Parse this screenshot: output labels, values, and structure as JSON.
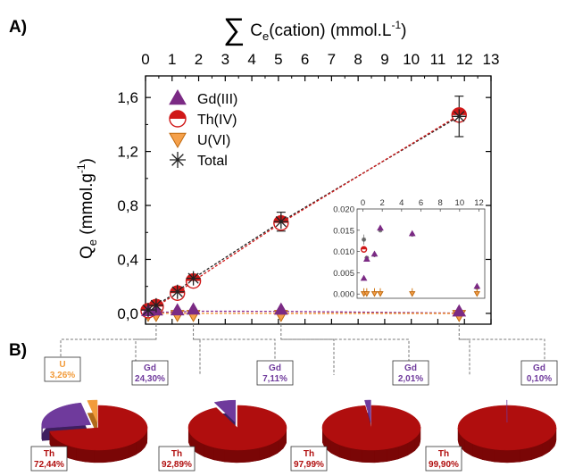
{
  "panels": {
    "a": "A)",
    "b": "B)"
  },
  "chart_data": [
    {
      "type": "scatter",
      "top_axis_label_prefix": "∑",
      "top_axis_label": "C",
      "top_axis_label_sub": "e",
      "top_axis_label_rest": "(cation)  (mmol.L",
      "top_axis_label_sup": "-1",
      "top_axis_label_end": ")",
      "ylabel": "Q",
      "ylabel_sub": "e",
      "ylabel_rest": " (mmol.g",
      "ylabel_sup": "-1",
      "ylabel_end": ")",
      "xlim": [
        0,
        13
      ],
      "ylim": [
        -0.08,
        1.76
      ],
      "x_ticks": [
        "0",
        "1",
        "2",
        "3",
        "4",
        "5",
        "6",
        "7",
        "8",
        "9",
        "10",
        "11",
        "12",
        "13"
      ],
      "y_ticks": [
        {
          "value": 0.0,
          "label": "0,0"
        },
        {
          "value": 0.4,
          "label": "0,4"
        },
        {
          "value": 0.8,
          "label": "0,8"
        },
        {
          "value": 1.2,
          "label": "1,2"
        },
        {
          "value": 1.6,
          "label": "1,6"
        }
      ],
      "legend_position": "top-left",
      "series": [
        {
          "name": "Gd(III)",
          "marker": "triangle-up",
          "color": "#7b2a84",
          "x": [
            0.1,
            0.4,
            1.2,
            1.8,
            5.1,
            11.8
          ],
          "y": [
            0.004,
            0.009,
            0.01,
            0.016,
            0.015,
            0.002
          ]
        },
        {
          "name": "Th(IV)",
          "marker": "half-circle",
          "color": "#e8211f",
          "x": [
            0.1,
            0.4,
            1.2,
            1.8,
            5.1,
            11.8
          ],
          "y": [
            0.02,
            0.05,
            0.15,
            0.24,
            0.67,
            1.47
          ]
        },
        {
          "name": "U(VI)",
          "marker": "triangle-down",
          "color": "#f28c28",
          "x": [
            0.1,
            0.4,
            1.2,
            1.8,
            5.1,
            11.8
          ],
          "y": [
            0.001,
            0.0005,
            0.0003,
            0.0002,
            0.0,
            0.0
          ]
        },
        {
          "name": "Total",
          "marker": "asterisk",
          "color": "#222222",
          "x": [
            0.1,
            0.4,
            1.2,
            1.8,
            5.1,
            11.8
          ],
          "y": [
            0.025,
            0.06,
            0.16,
            0.26,
            0.68,
            1.46
          ],
          "err": [
            0.02,
            0.03,
            0.03,
            0.03,
            0.07,
            0.15
          ]
        }
      ]
    },
    {
      "type": "scatter",
      "role": "inset",
      "xlim": [
        -0.6,
        12.6
      ],
      "ylim": [
        -0.001,
        0.02
      ],
      "x_ticks": [
        "0",
        "2",
        "4",
        "6",
        "8",
        "10",
        "12"
      ],
      "y_ticks": [
        "0.000",
        "0.005",
        "0.010",
        "0.015",
        "0.020"
      ],
      "y_tick_values": [
        0.0,
        0.005,
        0.01,
        0.015,
        0.02
      ],
      "series": [
        {
          "name": "Gd(III)",
          "marker": "triangle-up",
          "color": "#7b2a84",
          "x": [
            0.1,
            0.4,
            1.2,
            1.8,
            5.1,
            11.8
          ],
          "y": [
            0.0037,
            0.0082,
            0.0094,
            0.0155,
            0.0142,
            0.0018
          ]
        },
        {
          "name": "Th(IV)",
          "marker": "half-circle",
          "color": "#e8211f",
          "x": [
            0.1
          ],
          "y": [
            0.0105
          ]
        },
        {
          "name": "U(VI)",
          "marker": "triangle-down",
          "color": "#f28c28",
          "x": [
            0.1,
            0.4,
            1.2,
            1.8,
            5.1,
            11.8
          ],
          "y": [
            0.0001,
            0.0001,
            0.0001,
            0.0001,
            0.0001,
            0.0001
          ]
        },
        {
          "name": "Total",
          "marker": "asterisk",
          "color": "#555555",
          "x": [
            0.1,
            0.4,
            1.2,
            1.8,
            5.1,
            11.8
          ],
          "y": [
            0.0128,
            0.0085,
            0.0092,
            0.015,
            0.014,
            0.0015
          ],
          "err": [
            0.0012,
            0.0004,
            0.0004,
            0.0005,
            0.0005,
            0.0004
          ]
        }
      ]
    },
    {
      "type": "pie",
      "x": 0.4,
      "labels": [
        "Th",
        "Gd",
        "U"
      ],
      "values_text": [
        "72,44%",
        "24,30%",
        "3,26%"
      ],
      "values": [
        72.44,
        24.3,
        3.26
      ]
    },
    {
      "type": "pie",
      "x": 1.8,
      "labels": [
        "Th",
        "Gd"
      ],
      "values_text": [
        "92,89%",
        "7,11%"
      ],
      "values": [
        92.89,
        7.11
      ]
    },
    {
      "type": "pie",
      "x": 5.1,
      "labels": [
        "Th",
        "Gd"
      ],
      "values_text": [
        "97,99%",
        "2,01%"
      ],
      "values": [
        97.99,
        2.01
      ]
    },
    {
      "type": "pie",
      "x": 11.8,
      "labels": [
        "Th",
        "Gd"
      ],
      "values_text": [
        "99,90%",
        "0,10%"
      ],
      "values": [
        99.9,
        0.1
      ]
    }
  ],
  "colors": {
    "th": "#b00e0e",
    "gd": "#6f3a9c",
    "u": "#f29b3a",
    "line_total": "#222222",
    "line_th": "#d01818"
  }
}
